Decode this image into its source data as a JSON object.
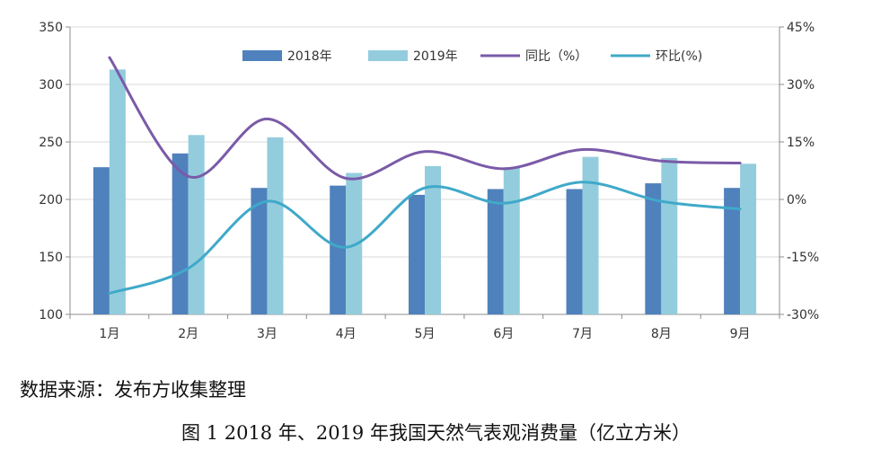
{
  "source_note": "数据来源：发布方收集整理",
  "caption": "图 1 2018 年、2019 年我国天然气表观消费量（亿立方米）",
  "chart_data": {
    "type": "bar",
    "categories": [
      "1月",
      "2月",
      "3月",
      "4月",
      "5月",
      "6月",
      "7月",
      "8月",
      "9月"
    ],
    "series": [
      {
        "name": "2018年",
        "kind": "bar",
        "axis": "left",
        "color": "#4f81bd",
        "values": [
          228,
          240,
          210,
          212,
          204,
          209,
          209,
          214,
          210
        ]
      },
      {
        "name": "2019年",
        "kind": "bar",
        "axis": "left",
        "color": "#93cddd",
        "values": [
          313,
          256,
          254,
          223,
          229,
          228,
          237,
          236,
          231
        ]
      },
      {
        "name": "同比（%）",
        "kind": "line",
        "axis": "right",
        "color": "#7a5aa8",
        "values": [
          37,
          6,
          21,
          5.5,
          12.5,
          8,
          13,
          10,
          9.5
        ]
      },
      {
        "name": "环比(%)",
        "kind": "line",
        "axis": "right",
        "color": "#3fa9c9",
        "values": [
          -24.5,
          -18,
          -0.5,
          -12.5,
          3,
          -1,
          4.5,
          -0.5,
          -2.5
        ]
      }
    ],
    "y_left": {
      "min": 100,
      "max": 350,
      "ticks": [
        100,
        150,
        200,
        250,
        300,
        350
      ],
      "tick_labels": [
        "100",
        "150",
        "200",
        "250",
        "300",
        "350"
      ]
    },
    "y_right": {
      "min": -30,
      "max": 45,
      "ticks": [
        -30,
        -15,
        0,
        15,
        30,
        45
      ],
      "tick_labels": [
        "-30%",
        "-15%",
        "0%",
        "15%",
        "30%",
        "45%"
      ]
    },
    "legend_position": "top",
    "grid": "horizontal"
  }
}
